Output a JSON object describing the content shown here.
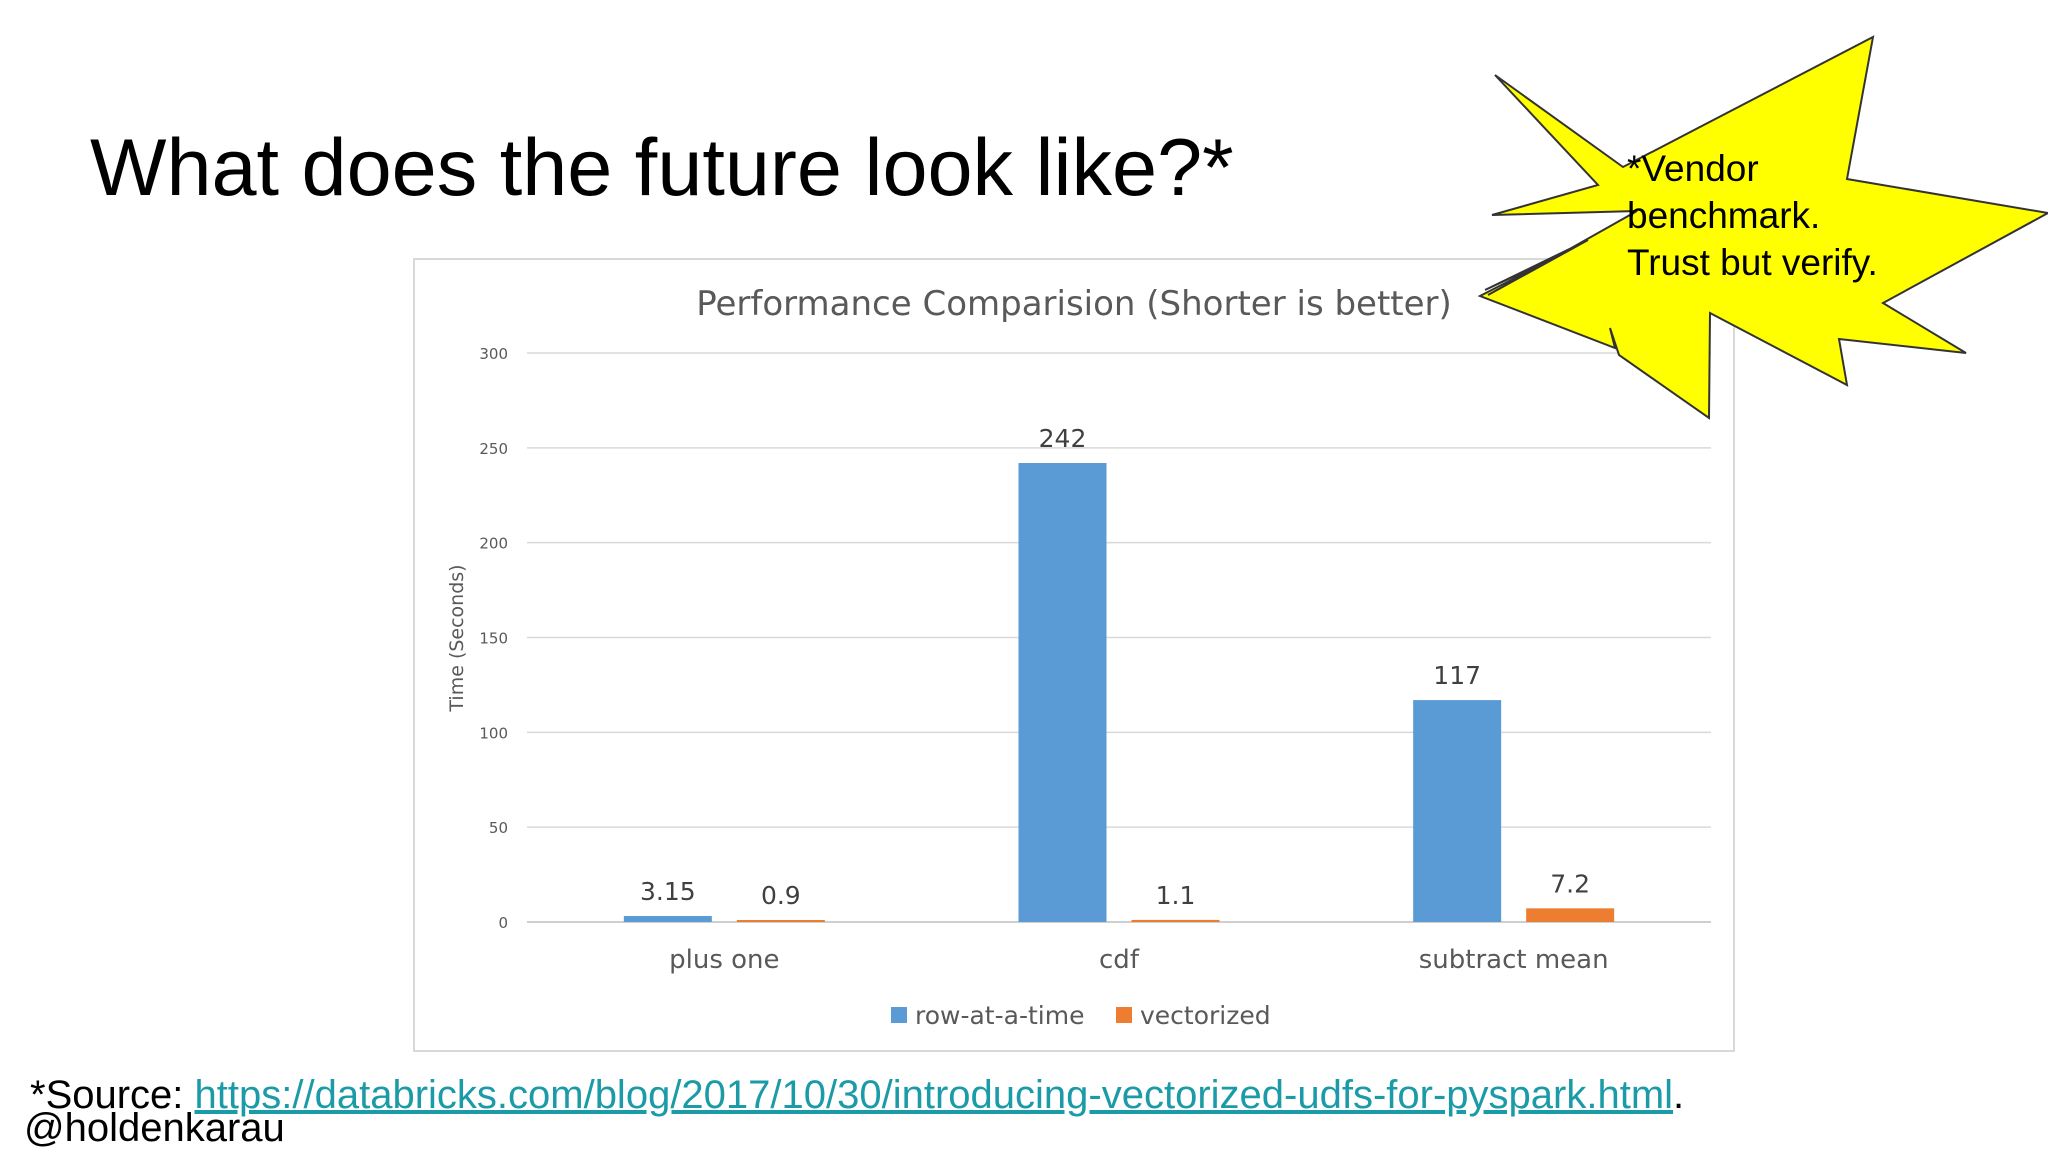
{
  "slide": {
    "title": "What does the future look like?*",
    "source_prefix": "*Source: ",
    "source_url": "https://databricks.com/blog/2017/10/30/introducing-vectorized-udfs-for-pyspark.html",
    "source_suffix": ".",
    "handle": "@holdenkarau"
  },
  "callout": {
    "lines": [
      "*Vendor",
      "benchmark.",
      "Trust but verify."
    ],
    "fill_color": "#ffff00",
    "stroke_color": "#333333"
  },
  "chart_data": {
    "type": "bar",
    "title": "Performance Comparision (Shorter is better)",
    "xlabel": "",
    "ylabel": "Time (Seconds)",
    "ylim": [
      0,
      300
    ],
    "yticks": [
      0,
      50,
      100,
      150,
      200,
      250,
      300
    ],
    "grid": true,
    "legend_position": "bottom",
    "categories": [
      "plus one",
      "cdf",
      "subtract mean"
    ],
    "series": [
      {
        "name": "row-at-a-time",
        "color": "#5b9bd5",
        "values": [
          3.15,
          242,
          117
        ],
        "labels": [
          "3.15",
          "242",
          "117"
        ]
      },
      {
        "name": "vectorized",
        "color": "#ed7d31",
        "values": [
          0.9,
          1.1,
          7.2
        ],
        "labels": [
          "0.9",
          "1.1",
          "7.2"
        ]
      }
    ]
  }
}
